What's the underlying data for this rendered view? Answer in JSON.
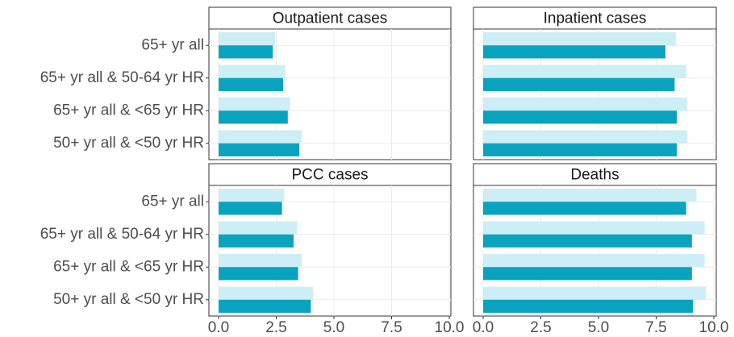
{
  "chart_data": [
    {
      "type": "bar",
      "title": "Outpatient cases",
      "categories": [
        "65+ yr all",
        "65+ yr all & 50-64 yr HR",
        "65+ yr all & <65 yr HR",
        "50+ yr all & <50 yr HR"
      ],
      "series": [
        {
          "color": "#cdeef4",
          "values": [
            2.45,
            2.9,
            3.1,
            3.6
          ]
        },
        {
          "color": "#0aa3bf",
          "values": [
            2.35,
            2.8,
            3.0,
            3.5
          ]
        }
      ],
      "xlim": [
        0,
        10
      ],
      "xticks": [
        {
          "value": 0,
          "label": "0.0"
        },
        2.5,
        {
          "value": 5,
          "label": "5.0"
        },
        7.5,
        {
          "value": 10,
          "label": "10.0"
        }
      ],
      "grid": true
    },
    {
      "type": "bar",
      "title": "Inpatient cases",
      "series": [
        {
          "color": "#cdeef4",
          "values": [
            8.35,
            8.8,
            8.85,
            8.85
          ]
        },
        {
          "color": "#0aa3bf",
          "values": [
            7.9,
            8.3,
            8.4,
            8.4
          ]
        }
      ],
      "xlim": [
        0,
        10
      ],
      "xticks": [
        {
          "value": 0,
          "label": "0.0"
        },
        2.5,
        {
          "value": 5,
          "label": "5.0"
        },
        7.5,
        {
          "value": 10,
          "label": "10.0"
        }
      ],
      "grid": true
    },
    {
      "type": "bar",
      "title": "PCC cases",
      "categories": [
        "65+ yr all",
        "65+ yr all & 50-64 yr HR",
        "65+ yr all & <65 yr HR",
        "50+ yr all & <50 yr HR"
      ],
      "series": [
        {
          "color": "#cdeef4",
          "values": [
            2.85,
            3.4,
            3.6,
            4.1
          ]
        },
        {
          "color": "#0aa3bf",
          "values": [
            2.75,
            3.25,
            3.45,
            4.0
          ]
        }
      ],
      "xlim": [
        0,
        10
      ],
      "xticks": [
        {
          "value": 0,
          "label": "0.0"
        },
        2.5,
        {
          "value": 5,
          "label": "5.0"
        },
        7.5,
        {
          "value": 10,
          "label": "10.0"
        }
      ],
      "grid": true
    },
    {
      "type": "bar",
      "title": "Deaths",
      "series": [
        {
          "color": "#cdeef4",
          "values": [
            9.25,
            9.6,
            9.6,
            9.65
          ]
        },
        {
          "color": "#0aa3bf",
          "values": [
            8.8,
            9.05,
            9.05,
            9.1
          ]
        }
      ],
      "xlim": [
        0,
        10
      ],
      "xticks": [
        {
          "value": 0,
          "label": "0.0"
        },
        2.5,
        {
          "value": 5,
          "label": "5.0"
        },
        7.5,
        {
          "value": 10,
          "label": "10.0"
        }
      ],
      "grid": true
    }
  ]
}
